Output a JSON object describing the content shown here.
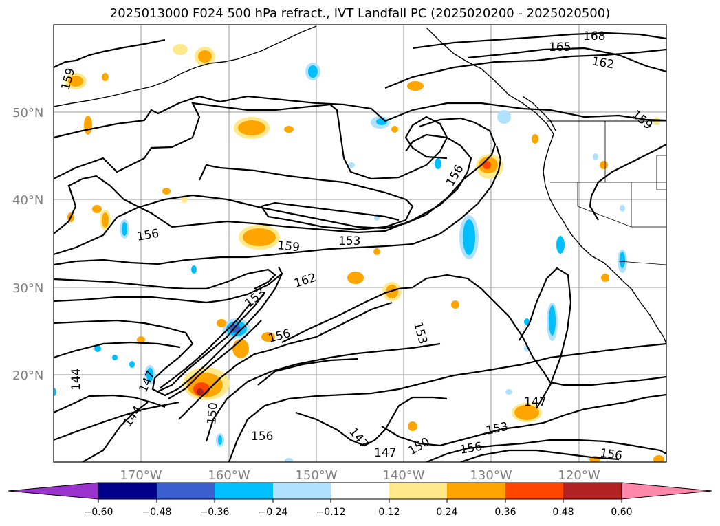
{
  "title": "2025013000 F024 500 hPa refract., IVT Landfall PC (2025020200 - 2025020500)",
  "lat_labels": [
    "50°N",
    "40°N",
    "30°N",
    "20°N"
  ],
  "lon_labels": [
    "170°W",
    "160°W",
    "150°W",
    "140°W",
    "130°W",
    "120°W"
  ],
  "contour_labels": [
    "168",
    "165",
    "162",
    "159",
    "159",
    "156",
    "156",
    "159",
    "153",
    "162",
    "153",
    "156",
    "153",
    "144",
    "147",
    "144",
    "150",
    "156",
    "147",
    "147",
    "150",
    "153",
    "156",
    "156",
    "147"
  ],
  "colorbar": {
    "ticks": [
      "−0.60",
      "−0.48",
      "−0.36",
      "−0.24",
      "−0.12",
      "0.12",
      "0.24",
      "0.36",
      "0.48",
      "0.60"
    ],
    "colors": [
      "#9933cc",
      "#00008b",
      "#3a5fcd",
      "#00bfff",
      "#b0e2ff",
      "#ffffff",
      "#ffe98a",
      "#ffa500",
      "#ff4500",
      "#b22222",
      "#ff88aa",
      "#ff88aa"
    ]
  }
}
